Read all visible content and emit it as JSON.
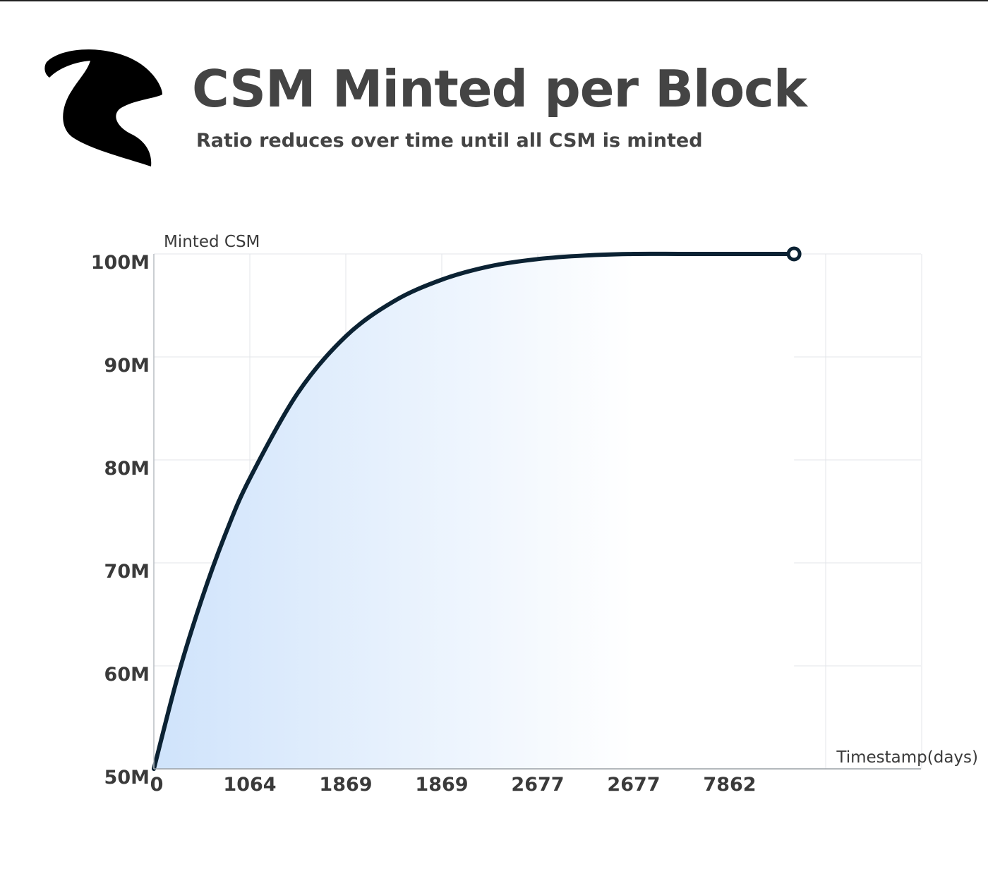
{
  "header": {
    "title": "CSM Minted per Block",
    "subtitle": "Ratio reduces over time until all CSM is minted",
    "logo_icon": "goat-head-logo-icon"
  },
  "colors": {
    "line": "#0b2233",
    "fill_start": "#cfe3fb",
    "fill_end": "#ffffff",
    "grid": "#e3e6ea",
    "text": "#3a3a3a"
  },
  "chart_data": {
    "type": "area",
    "title": "CSM Minted per Block",
    "xlabel": "Timestamp(days)",
    "ylabel": "Minted CSM",
    "y_ticks": [
      "50M",
      "60M",
      "70M",
      "80M",
      "90M",
      "100M"
    ],
    "y_tick_values": [
      50000000,
      60000000,
      70000000,
      80000000,
      90000000,
      100000000
    ],
    "ylim": [
      50000000,
      100000000
    ],
    "x_tick_labels": [
      "0",
      "1064",
      "1869",
      "1869",
      "2677",
      "2677",
      "7862"
    ],
    "grid": true,
    "series": [
      {
        "x_tick_index": [
          0,
          0.25,
          0.5,
          0.75,
          1,
          1.5,
          2,
          2.5,
          3,
          3.5,
          4,
          4.5,
          5,
          5.5,
          6,
          6.67
        ],
        "values": [
          50000000,
          59000000,
          66500000,
          72900000,
          78200000,
          86500000,
          92000000,
          95400000,
          97500000,
          98800000,
          99500000,
          99850000,
          100000000,
          100000000,
          100000000,
          100000000
        ]
      }
    ],
    "end_marker": true
  }
}
